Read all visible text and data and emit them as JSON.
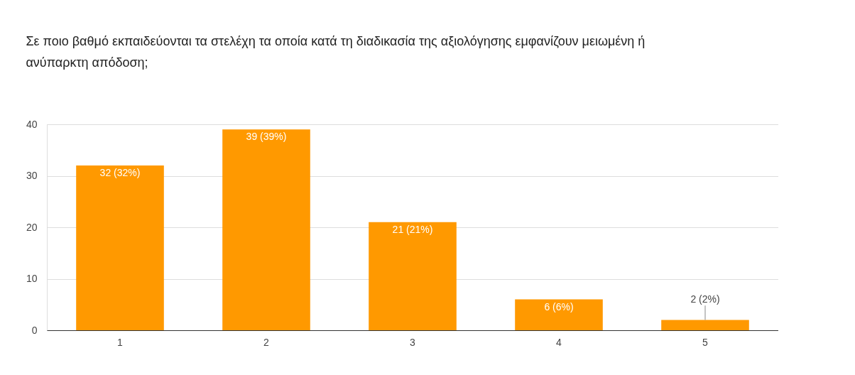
{
  "chart_data": {
    "type": "bar",
    "title": "Σε ποιο βαθμό εκπαιδεύονται τα στελέχη τα οποία κατά τη διαδικασία της αξιολόγησης εμφανίζουν μειωμένη ή ανύπαρκτη απόδοση;",
    "categories": [
      "1",
      "2",
      "3",
      "4",
      "5"
    ],
    "values": [
      32,
      39,
      21,
      6,
      2
    ],
    "value_labels": [
      "32 (32%)",
      "39 (39%)",
      "21 (21%)",
      "6 (6%)",
      "2 (2%)"
    ],
    "color": "#ff9900",
    "ylim": [
      0,
      40
    ],
    "yticks": [
      0,
      10,
      20,
      30,
      40
    ],
    "grid": "y"
  }
}
